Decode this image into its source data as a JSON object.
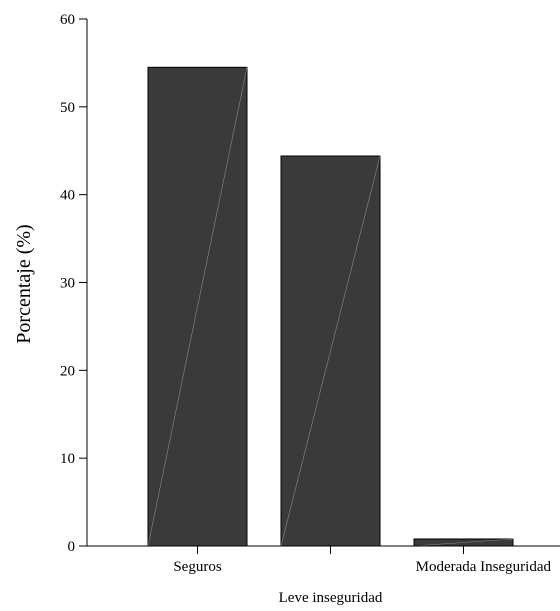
{
  "chart_data": {
    "type": "bar",
    "categories": [
      "Seguros",
      "Leve inseguridad",
      "Moderada Inseguridad"
    ],
    "values": [
      54.5,
      44.4,
      0.8
    ],
    "xlabel": "",
    "ylabel": "Porcentaje (%)",
    "ylim": [
      0,
      60
    ],
    "yticks": [
      0,
      10,
      20,
      30,
      40,
      50,
      60
    ],
    "grid": false,
    "bar_color": "#3a3a3a"
  }
}
